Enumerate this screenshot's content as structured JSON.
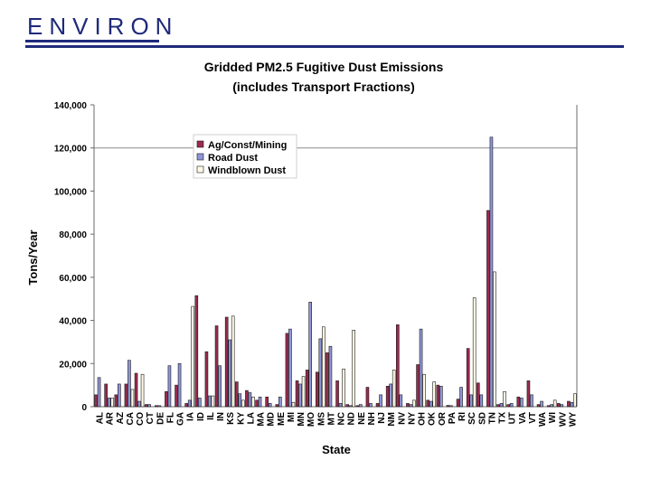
{
  "header": {
    "logo_text": "ENVIRON",
    "colors": {
      "brand": "#1f2a7a"
    }
  },
  "chart_data": {
    "type": "bar",
    "title": "Gridded PM2.5 Fugitive Dust Emissions",
    "subtitle": "(includes Transport Fractions)",
    "xlabel": "State",
    "ylabel": "Tons/Year",
    "ylim": [
      0,
      140000
    ],
    "yticks": [
      0,
      20000,
      40000,
      60000,
      80000,
      100000,
      120000,
      140000
    ],
    "ytick_labels": [
      "0",
      "20,000",
      "40,000",
      "60,000",
      "80,000",
      "100,000",
      "120,000",
      "140,000"
    ],
    "gridlines": [
      120000
    ],
    "legend_position": "top-left",
    "categories": [
      "AL",
      "AR",
      "AZ",
      "CA",
      "CO",
      "CT",
      "DE",
      "FL",
      "GA",
      "IA",
      "ID",
      "IL",
      "IN",
      "KS",
      "KY",
      "LA",
      "MA",
      "MD",
      "ME",
      "MI",
      "MN",
      "MO",
      "MS",
      "MT",
      "NC",
      "ND",
      "NE",
      "NH",
      "NJ",
      "NM",
      "NV",
      "NY",
      "OH",
      "OK",
      "OR",
      "PA",
      "RI",
      "SC",
      "SD",
      "TN",
      "TX",
      "UT",
      "VA",
      "VT",
      "WA",
      "WI",
      "WV",
      "WY"
    ],
    "series": [
      {
        "name": "Ag/Const/Mining",
        "color": "#9b2b4e",
        "values": [
          5500,
          10500,
          5500,
          10500,
          15500,
          1000,
          500,
          7000,
          10000,
          1500,
          51500,
          25500,
          37500,
          41500,
          11500,
          7500,
          3000,
          4500,
          1000,
          34000,
          12000,
          17000,
          16000,
          25000,
          12000,
          1000,
          500,
          9000,
          1500,
          9500,
          38000,
          1500,
          19500,
          3000,
          10000,
          600,
          3500,
          27000,
          11000,
          91000,
          1000,
          1000,
          4500,
          12000,
          1000,
          500,
          1500,
          2500
        ]
      },
      {
        "name": "Road Dust",
        "color": "#8f95d9",
        "values": [
          13500,
          4000,
          10500,
          21500,
          2500,
          1000,
          500,
          19000,
          20000,
          3000,
          4000,
          5000,
          19000,
          31000,
          6000,
          6500,
          4500,
          1500,
          4500,
          36000,
          10500,
          48500,
          31500,
          28000,
          1500,
          500,
          1000,
          1500,
          5500,
          10500,
          5500,
          1000,
          36000,
          2500,
          9500,
          500,
          9000,
          5500,
          5500,
          125000,
          1500,
          1500,
          4000,
          5500,
          2500,
          1000,
          1000,
          2000
        ]
      },
      {
        "name": "Windblown Dust",
        "color": "#fffbe6",
        "values": [
          0,
          4000,
          0,
          8000,
          15000,
          0,
          0,
          0,
          0,
          46500,
          0,
          5000,
          0,
          42000,
          3000,
          4500,
          0,
          0,
          0,
          2000,
          14000,
          0,
          37000,
          0,
          17500,
          35500,
          0,
          0,
          0,
          17000,
          0,
          3000,
          15000,
          11500,
          0,
          0,
          0,
          50500,
          0,
          62500,
          7000,
          0,
          0,
          0,
          0,
          3000,
          0,
          6000
        ]
      }
    ]
  }
}
